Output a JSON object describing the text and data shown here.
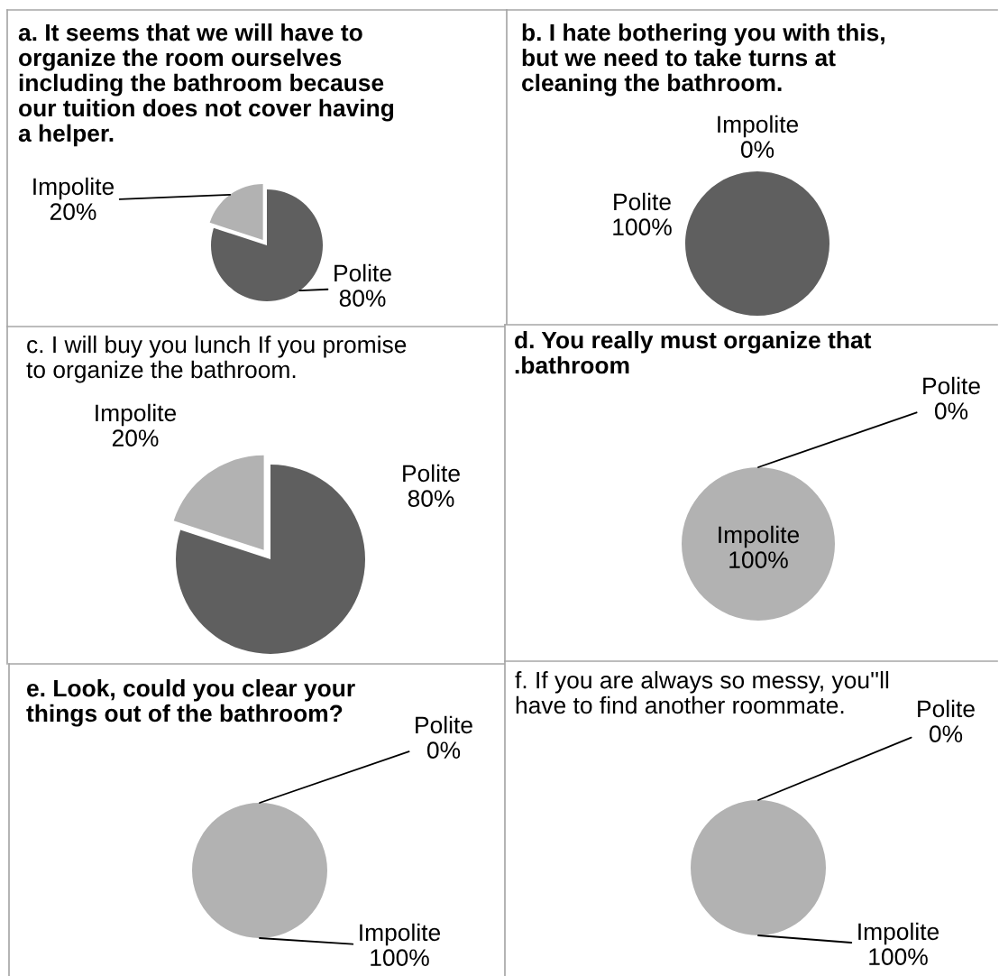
{
  "chart_data": [
    {
      "type": "pie",
      "title": "a. It seems that we will have to\norganize the room ourselves\nincluding the bathroom because\nour tuition does not cover having\na helper.",
      "categories": [
        "Polite",
        "Impolite"
      ],
      "values": [
        80,
        20
      ],
      "colors": [
        "#5f5f5f",
        "#b2b2b2"
      ],
      "value_labels": [
        "80%",
        "20%"
      ]
    },
    {
      "type": "pie",
      "title": "b. I hate bothering you with this,\nbut we need to take turns at\ncleaning the bathroom.",
      "categories": [
        "Polite",
        "Impolite"
      ],
      "values": [
        100,
        0
      ],
      "colors": [
        "#5f5f5f",
        "#b2b2b2"
      ],
      "value_labels": [
        "100%",
        "0%"
      ]
    },
    {
      "type": "pie",
      "title": "c. I will buy you lunch If you promise\nto organize the bathroom.",
      "categories": [
        "Polite",
        "Impolite"
      ],
      "values": [
        80,
        20
      ],
      "colors": [
        "#5f5f5f",
        "#b2b2b2"
      ],
      "value_labels": [
        "80%",
        "20%"
      ]
    },
    {
      "type": "pie",
      "title": "d. You really must organize that\n.bathroom",
      "categories": [
        "Polite",
        "Impolite"
      ],
      "values": [
        0,
        100
      ],
      "colors": [
        "#5f5f5f",
        "#b2b2b2"
      ],
      "value_labels": [
        "0%",
        "100%"
      ]
    },
    {
      "type": "pie",
      "title": "e. Look, could you clear your\nthings out of the bathroom?",
      "categories": [
        "Polite",
        "Impolite"
      ],
      "values": [
        0,
        100
      ],
      "colors": [
        "#5f5f5f",
        "#b2b2b2"
      ],
      "value_labels": [
        "0%",
        "100%"
      ]
    },
    {
      "type": "pie",
      "title": "f. If you are always so messy, you''ll\nhave to find another roommate.",
      "categories": [
        "Polite",
        "Impolite"
      ],
      "values": [
        0,
        100
      ],
      "colors": [
        "#5f5f5f",
        "#b2b2b2"
      ],
      "value_labels": [
        "0%",
        "100%"
      ]
    }
  ]
}
